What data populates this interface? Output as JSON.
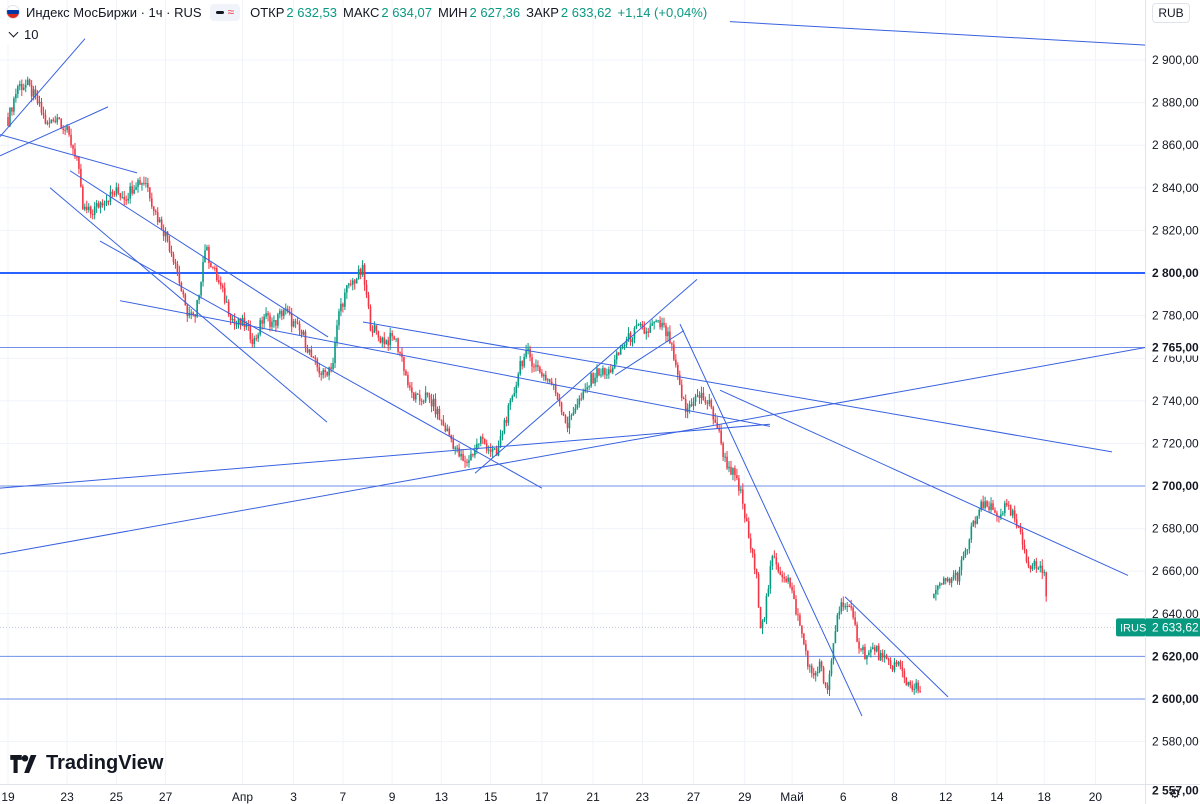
{
  "header": {
    "symbol": "Индекс МосБиржи · 1ч · RUS",
    "open_label": "ОТКР",
    "open_value": "2 632,53",
    "high_label": "МАКС",
    "high_value": "2 634,07",
    "low_label": "МИН",
    "low_value": "2 627,36",
    "close_label": "ЗАКР",
    "close_value": "2 633,62",
    "change": "+1,14 (+0,04%)",
    "indicator_count": "10",
    "currency": "RUB",
    "wave_glyph": "≈"
  },
  "brand": "TradingView",
  "colors": {
    "up": "#089981",
    "down": "#f23645",
    "trendline": "#3861e0",
    "level": "#2962ff",
    "price_tag": "#089981"
  },
  "chart_data": {
    "type": "candlestick",
    "ylim": [
      2552,
      2918
    ],
    "y_ticks": [
      {
        "value": 2900,
        "label": "2 900,00"
      },
      {
        "value": 2880,
        "label": "2 880,00"
      },
      {
        "value": 2860,
        "label": "2 860,00"
      },
      {
        "value": 2840,
        "label": "2 840,00"
      },
      {
        "value": 2820,
        "label": "2 820,00"
      },
      {
        "value": 2780,
        "label": "2 780,00"
      },
      {
        "value": 2760,
        "label": "2 760,00"
      },
      {
        "value": 2740,
        "label": "2 740,00"
      },
      {
        "value": 2720,
        "label": "2 720,00"
      },
      {
        "value": 2680,
        "label": "2 680,00"
      },
      {
        "value": 2660,
        "label": "2 660,00"
      },
      {
        "value": 2640,
        "label": "2 640,00"
      },
      {
        "value": 2580,
        "label": "2 580,00"
      }
    ],
    "x_ticks": [
      {
        "i": 0,
        "label": "19"
      },
      {
        "i": 30,
        "label": "23"
      },
      {
        "i": 55,
        "label": "25"
      },
      {
        "i": 80,
        "label": "27"
      },
      {
        "i": 119,
        "label": "Апр"
      },
      {
        "i": 145,
        "label": "3"
      },
      {
        "i": 170,
        "label": "7"
      },
      {
        "i": 195,
        "label": "9"
      },
      {
        "i": 220,
        "label": "13"
      },
      {
        "i": 245,
        "label": "15"
      },
      {
        "i": 271,
        "label": "17"
      },
      {
        "i": 297,
        "label": "21"
      },
      {
        "i": 322,
        "label": "23"
      },
      {
        "i": 348,
        "label": "27"
      },
      {
        "i": 374,
        "label": "29"
      },
      {
        "i": 398,
        "label": "Май"
      },
      {
        "i": 424,
        "label": "6"
      },
      {
        "i": 450,
        "label": "8"
      },
      {
        "i": 476,
        "label": "12"
      },
      {
        "i": 502,
        "label": "14"
      },
      {
        "i": 526,
        "label": "18"
      },
      {
        "i": 552,
        "label": "20"
      }
    ],
    "levels": [
      {
        "value": 2800,
        "label": "2 800,00",
        "strong": true
      },
      {
        "value": 2765,
        "label": "2 765,00",
        "strong": false
      },
      {
        "value": 2700,
        "label": "2 700,00",
        "strong": false
      },
      {
        "value": 2620,
        "label": "2 620,00",
        "strong": false
      },
      {
        "value": 2600,
        "label": "2 600,00",
        "strong": false
      },
      {
        "value": 2557,
        "label": "2 557,00",
        "strong": false
      }
    ],
    "last_price": {
      "ticker": "IRUS",
      "value": 2633.62,
      "label": "2 633,62"
    },
    "anchors": [
      [
        0,
        2872
      ],
      [
        5,
        2888
      ],
      [
        10,
        2888
      ],
      [
        15,
        2880
      ],
      [
        20,
        2869
      ],
      [
        25,
        2874
      ],
      [
        30,
        2866
      ],
      [
        35,
        2854
      ],
      [
        38,
        2830
      ],
      [
        42,
        2828
      ],
      [
        48,
        2834
      ],
      [
        55,
        2838
      ],
      [
        60,
        2836
      ],
      [
        65,
        2843
      ],
      [
        70,
        2843
      ],
      [
        75,
        2828
      ],
      [
        80,
        2818
      ],
      [
        85,
        2805
      ],
      [
        90,
        2783
      ],
      [
        95,
        2778
      ],
      [
        100,
        2812
      ],
      [
        105,
        2800
      ],
      [
        110,
        2788
      ],
      [
        115,
        2776
      ],
      [
        120,
        2776
      ],
      [
        125,
        2768
      ],
      [
        130,
        2780
      ],
      [
        135,
        2776
      ],
      [
        140,
        2783
      ],
      [
        145,
        2776
      ],
      [
        150,
        2770
      ],
      [
        155,
        2758
      ],
      [
        160,
        2752
      ],
      [
        165,
        2758
      ],
      [
        168,
        2782
      ],
      [
        172,
        2792
      ],
      [
        176,
        2797
      ],
      [
        180,
        2801
      ],
      [
        184,
        2776
      ],
      [
        188,
        2770
      ],
      [
        192,
        2768
      ],
      [
        196,
        2770
      ],
      [
        200,
        2760
      ],
      [
        204,
        2744
      ],
      [
        208,
        2740
      ],
      [
        212,
        2742
      ],
      [
        216,
        2738
      ],
      [
        220,
        2730
      ],
      [
        224,
        2724
      ],
      [
        228,
        2716
      ],
      [
        232,
        2710
      ],
      [
        236,
        2716
      ],
      [
        240,
        2722
      ],
      [
        244,
        2718
      ],
      [
        248,
        2714
      ],
      [
        252,
        2730
      ],
      [
        256,
        2740
      ],
      [
        260,
        2758
      ],
      [
        264,
        2762
      ],
      [
        268,
        2756
      ],
      [
        272,
        2752
      ],
      [
        276,
        2748
      ],
      [
        280,
        2740
      ],
      [
        284,
        2728
      ],
      [
        288,
        2738
      ],
      [
        292,
        2742
      ],
      [
        296,
        2750
      ],
      [
        300,
        2754
      ],
      [
        304,
        2752
      ],
      [
        308,
        2758
      ],
      [
        312,
        2766
      ],
      [
        316,
        2770
      ],
      [
        320,
        2774
      ],
      [
        324,
        2772
      ],
      [
        328,
        2776
      ],
      [
        332,
        2775
      ],
      [
        336,
        2768
      ],
      [
        340,
        2750
      ],
      [
        344,
        2735
      ],
      [
        348,
        2741
      ],
      [
        352,
        2742
      ],
      [
        356,
        2738
      ],
      [
        360,
        2728
      ],
      [
        364,
        2712
      ],
      [
        368,
        2706
      ],
      [
        372,
        2696
      ],
      [
        376,
        2676
      ],
      [
        380,
        2656
      ],
      [
        382,
        2636
      ],
      [
        384,
        2640
      ],
      [
        388,
        2666
      ],
      [
        392,
        2660
      ],
      [
        396,
        2656
      ],
      [
        400,
        2642
      ],
      [
        404,
        2626
      ],
      [
        408,
        2610
      ],
      [
        412,
        2616
      ],
      [
        416,
        2602
      ],
      [
        418,
        2618
      ],
      [
        421,
        2640
      ],
      [
        424,
        2646
      ],
      [
        428,
        2640
      ],
      [
        432,
        2626
      ],
      [
        436,
        2620
      ],
      [
        440,
        2624
      ],
      [
        444,
        2618
      ],
      [
        448,
        2616
      ],
      [
        452,
        2616
      ],
      [
        456,
        2608
      ],
      [
        460,
        2606
      ],
      [
        464,
        2602
      ],
      [
        468,
        null
      ],
      [
        470,
        2648
      ],
      [
        474,
        2654
      ],
      [
        478,
        2656
      ],
      [
        482,
        2658
      ],
      [
        486,
        2668
      ],
      [
        490,
        2682
      ],
      [
        494,
        2690
      ],
      [
        498,
        2690
      ],
      [
        502,
        2686
      ],
      [
        506,
        2690
      ],
      [
        510,
        2686
      ],
      [
        514,
        2676
      ],
      [
        518,
        2664
      ],
      [
        522,
        2662
      ],
      [
        526,
        2660
      ],
      [
        528,
        2634
      ]
    ],
    "trendlines": [
      [
        [
          0,
          2864
        ],
        [
          85,
          2910
        ]
      ],
      [
        [
          0,
          2855
        ],
        [
          108,
          2878
        ]
      ],
      [
        [
          0,
          2865
        ],
        [
          137,
          2847
        ]
      ],
      [
        [
          70,
          2848
        ],
        [
          328,
          2770
        ]
      ],
      [
        [
          50,
          2840
        ],
        [
          327,
          2730
        ]
      ],
      [
        [
          100,
          2815
        ],
        [
          542,
          2699
        ]
      ],
      [
        [
          120,
          2787
        ],
        [
          770,
          2728
        ]
      ],
      [
        [
          363,
          2777
        ],
        [
          1112,
          2716
        ]
      ],
      [
        [
          0,
          2699
        ],
        [
          770,
          2729
        ]
      ],
      [
        [
          0,
          2668
        ],
        [
          1145,
          2765
        ]
      ],
      [
        [
          475,
          2706
        ],
        [
          697,
          2797
        ]
      ],
      [
        [
          680,
          2776
        ],
        [
          862,
          2592
        ]
      ],
      [
        [
          720,
          2745
        ],
        [
          1128,
          2658
        ]
      ],
      [
        [
          845,
          2648
        ],
        [
          948,
          2601
        ]
      ],
      [
        [
          730,
          2918
        ],
        [
          1145,
          2907
        ]
      ],
      [
        [
          615,
          2752
        ],
        [
          684,
          2773
        ]
      ]
    ]
  }
}
